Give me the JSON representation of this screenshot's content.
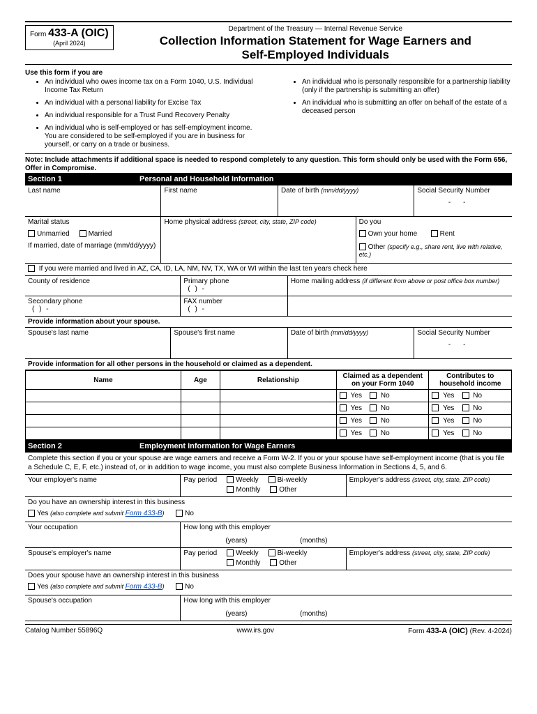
{
  "colors": {
    "fg": "#000000",
    "bg": "#ffffff",
    "link": "#0645ad"
  },
  "fonts": {
    "base_family": "Arial",
    "base_size_pt": 10,
    "title_size_pt": 17,
    "section_size_pt": 11
  },
  "header": {
    "form_prefix": "Form",
    "form_number": "433-A (OIC)",
    "form_date": "(April 2024)",
    "department": "Department of the Treasury — Internal Revenue Service",
    "title_line1": "Collection Information Statement for Wage Earners and",
    "title_line2": "Self-Employed Individuals"
  },
  "use": {
    "heading": "Use this form if you are",
    "left": [
      "An individual who owes income tax on a Form 1040, U.S. Individual Income Tax Return",
      "An individual with a personal liability for Excise Tax",
      "An individual responsible for a Trust Fund Recovery Penalty",
      "An individual who is self-employed or has self-employment income. You are considered to be self-employed if you are in business for yourself, or carry on a trade or business."
    ],
    "right": [
      "An individual who is personally responsible for a partnership liability (only if the partnership is submitting an offer)",
      "An individual who is submitting an offer on behalf of the estate of a deceased person"
    ]
  },
  "note": "Note: Include attachments if additional space is needed to respond completely to any question. This form should only be used with the Form 656, Offer in Compromise.",
  "section1": {
    "number": "Section 1",
    "title": "Personal and Household Information",
    "lastname": "Last name",
    "firstname": "First name",
    "dob": "Date of birth",
    "dob_hint": "(mm/dd/yyyy)",
    "ssn": "Social Security Number",
    "marital": "Marital status",
    "unmarried": "Unmarried",
    "married": "Married",
    "marriage_date": "If married, date of marriage (mm/dd/yyyy)",
    "home_addr": "Home physical address",
    "home_addr_hint": "(street, city, state, ZIP code)",
    "doyou": "Do you",
    "own": "Own your home",
    "rent": "Rent",
    "other": "Other",
    "other_hint": "(specify e.g., share rent, live with relative, etc.)",
    "community": "If you were married and lived in AZ, CA, ID, LA, NM, NV, TX, WA or WI within the last ten years check here",
    "county": "County of residence",
    "primary_phone": "Primary phone",
    "mailing": "Home mailing address",
    "mailing_hint": "(if different from above or post office box number)",
    "secondary_phone": "Secondary phone",
    "fax": "FAX number",
    "phone_tpl": "(      )         -",
    "spouse_heading": "Provide information about your spouse.",
    "spouse_last": "Spouse's last name",
    "spouse_first": "Spouse's first name",
    "dep_heading": "Provide information for all other persons in the household or claimed as a dependent.",
    "dep_cols": {
      "name": "Name",
      "age": "Age",
      "rel": "Relationship",
      "claimed_l1": "Claimed as a dependent",
      "claimed_l2": "on your Form 1040",
      "contrib_l1": "Contributes to",
      "contrib_l2": "household income"
    },
    "yes": "Yes",
    "no": "No",
    "dep_rows": 4
  },
  "section2": {
    "number": "Section 2",
    "title": "Employment Information for Wage Earners",
    "instruct": "Complete this section if you or your spouse are wage earners and receive a Form W-2. If you or your spouse have self-employment income (that is you file a Schedule C, E, F, etc.) instead of, or in addition to wage income, you must also complete Business Information in Sections 4, 5, and 6.",
    "your_employer": "Your employer's name",
    "pay_period": "Pay period",
    "weekly": "Weekly",
    "biweekly": "Bi-weekly",
    "monthly": "Monthly",
    "other": "Other",
    "emp_addr": "Employer's address",
    "emp_addr_hint": "(street, city, state, ZIP code)",
    "ownership_q": "Do you have an ownership interest in this business",
    "yes": "Yes",
    "yes_hint": "(also complete and submit ",
    "form433b": "Form 433-B",
    "close_paren": ")",
    "no": "No",
    "occupation": "Your occupation",
    "howlong": "How long with this employer",
    "years": "(years)",
    "months": "(months)",
    "spouse_employer": "Spouse's employer's name",
    "spouse_ownership_q": "Does your spouse have an ownership interest in this business",
    "spouse_occupation": "Spouse's occupation"
  },
  "footer": {
    "catalog": "Catalog Number 55896Q",
    "url": "www.irs.gov",
    "form_label": "Form",
    "form_number": "433-A (OIC)",
    "rev": "(Rev. 4-2024)"
  }
}
